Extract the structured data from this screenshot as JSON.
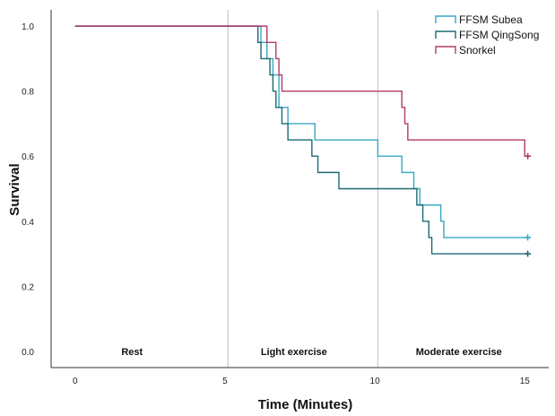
{
  "chart_data": {
    "type": "line",
    "xlabel": "Time (Minutes)",
    "ylabel": "Survival",
    "xlim": [
      -0.8,
      15.8
    ],
    "ylim": [
      -0.05,
      1.05
    ],
    "x_ticks": [
      0,
      5,
      10,
      15
    ],
    "y_ticks": [
      0.0,
      0.2,
      0.4,
      0.6,
      0.8,
      1.0
    ],
    "vertical_lines": [
      5.1,
      10.1
    ],
    "phase_labels": [
      {
        "label": "Rest",
        "x": 1.9
      },
      {
        "label": "Light exercise",
        "x": 7.3
      },
      {
        "label": "Moderate exercise",
        "x": 12.8
      }
    ],
    "legend_position": "top-right",
    "series": [
      {
        "name": "FFSM Subea",
        "color": "#3aa6c4",
        "steps": [
          [
            0,
            1.0
          ],
          [
            6.2,
            0.95
          ],
          [
            6.4,
            0.9
          ],
          [
            6.6,
            0.85
          ],
          [
            6.8,
            0.75
          ],
          [
            7.1,
            0.7
          ],
          [
            8.0,
            0.65
          ],
          [
            10.1,
            0.6
          ],
          [
            10.9,
            0.55
          ],
          [
            11.3,
            0.5
          ],
          [
            11.5,
            0.45
          ],
          [
            12.2,
            0.4
          ],
          [
            12.3,
            0.35
          ],
          [
            15.1,
            0.35
          ]
        ],
        "censor": [
          [
            15.1,
            0.35
          ]
        ]
      },
      {
        "name": "FFSM QingSong",
        "color": "#1d6a73",
        "steps": [
          [
            0,
            1.0
          ],
          [
            6.1,
            0.95
          ],
          [
            6.2,
            0.9
          ],
          [
            6.5,
            0.85
          ],
          [
            6.6,
            0.8
          ],
          [
            6.7,
            0.75
          ],
          [
            6.9,
            0.7
          ],
          [
            7.1,
            0.65
          ],
          [
            7.9,
            0.6
          ],
          [
            8.1,
            0.55
          ],
          [
            8.8,
            0.5
          ],
          [
            11.4,
            0.45
          ],
          [
            11.6,
            0.4
          ],
          [
            11.8,
            0.35
          ],
          [
            11.9,
            0.3
          ],
          [
            15.1,
            0.3
          ]
        ],
        "censor": [
          [
            15.1,
            0.3
          ]
        ]
      },
      {
        "name": "Snorkel",
        "color": "#b23a6b",
        "steps": [
          [
            0,
            1.0
          ],
          [
            6.4,
            0.95
          ],
          [
            6.7,
            0.9
          ],
          [
            6.8,
            0.85
          ],
          [
            6.9,
            0.8
          ],
          [
            10.9,
            0.75
          ],
          [
            11.0,
            0.7
          ],
          [
            11.1,
            0.65
          ],
          [
            15.0,
            0.6
          ],
          [
            15.1,
            0.6
          ]
        ],
        "censor": [
          [
            15.1,
            0.6
          ]
        ]
      }
    ]
  }
}
